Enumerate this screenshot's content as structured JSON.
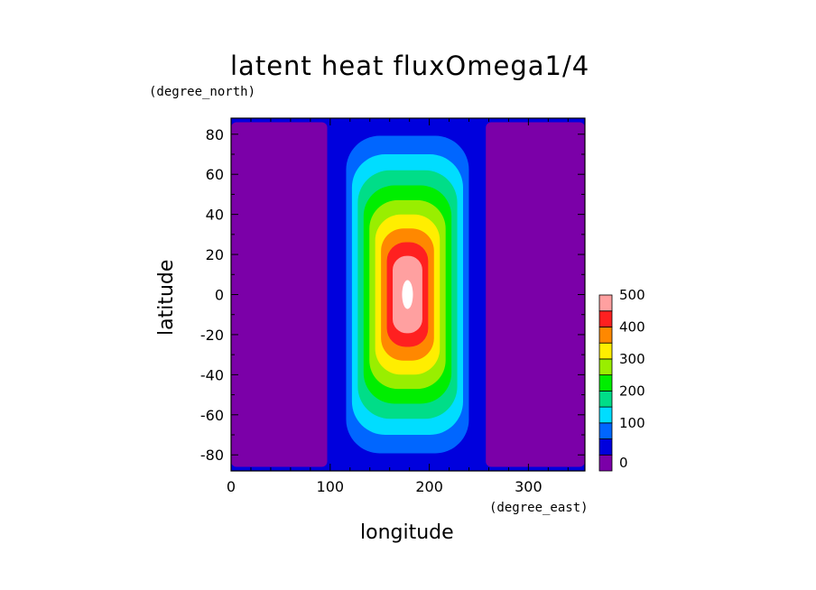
{
  "chart_data": {
    "type": "heatmap",
    "title": "latent heat fluxOmega1/4",
    "xlabel": "longitude",
    "ylabel": "latitude",
    "x_unit": "(degree_east)",
    "y_unit": "(degree_north)",
    "xlim": [
      0,
      357
    ],
    "ylim": [
      -88,
      88
    ],
    "x_ticks": [
      0,
      100,
      200,
      300
    ],
    "y_ticks": [
      -80,
      -60,
      -40,
      -20,
      0,
      20,
      40,
      60,
      80
    ],
    "colorbar": {
      "levels": [
        0,
        50,
        100,
        150,
        200,
        250,
        300,
        350,
        400,
        450,
        500
      ],
      "labels": [
        "0",
        "100",
        "200",
        "300",
        "400",
        "500"
      ],
      "colors": [
        "#7b00a8",
        "#0000dd",
        "#0066ff",
        "#00ddff",
        "#00dd88",
        "#00ee00",
        "#99ee00",
        "#ffee00",
        "#ff8800",
        "#ff2020",
        "#ffa0a0"
      ]
    },
    "field": {
      "background_value": 25,
      "low_regions": [
        {
          "lon": [
            0,
            97
          ],
          "lat": [
            -86,
            86
          ],
          "value": -10
        },
        {
          "lon": [
            257,
            357
          ],
          "lat": [
            -86,
            86
          ],
          "value": -10
        }
      ],
      "peak": {
        "lon": 178,
        "lat": 0,
        "value": 520
      }
    },
    "grid": false
  }
}
